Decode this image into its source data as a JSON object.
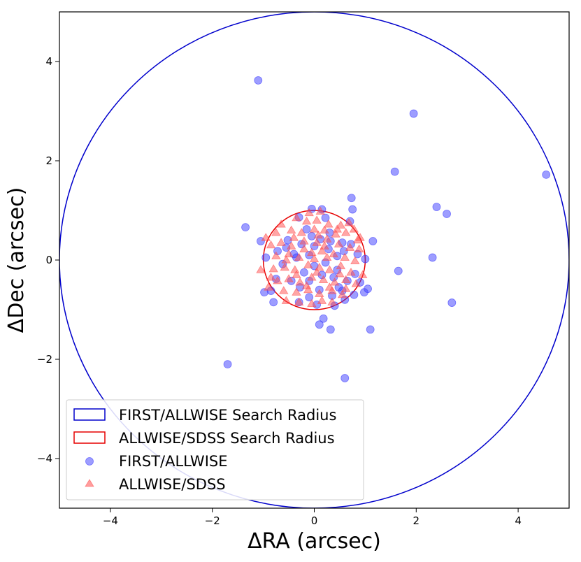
{
  "chart_data": {
    "type": "scatter",
    "xlabel": "ΔRA (arcsec)",
    "ylabel": "ΔDec (arcsec)",
    "xlim": [
      -5,
      5
    ],
    "ylim": [
      -5,
      5
    ],
    "xticks": [
      -4,
      -2,
      0,
      2,
      4
    ],
    "yticks": [
      -4,
      -2,
      0,
      2,
      4
    ],
    "xtick_labels": [
      "−4",
      "−2",
      "0",
      "2",
      "4"
    ],
    "ytick_labels": [
      "−4",
      "−2",
      "0",
      "2",
      "4"
    ],
    "grid": false,
    "legend_position": "lower-left",
    "circles": [
      {
        "name": "FIRST/ALLWISE Search Radius",
        "center": [
          0,
          0
        ],
        "radius": 5,
        "color": "#0000cc"
      },
      {
        "name": "ALLWISE/SDSS Search Radius",
        "center": [
          0,
          0
        ],
        "radius": 1,
        "color": "#e60000"
      }
    ],
    "series": [
      {
        "name": "FIRST/ALLWISE",
        "marker": "circle",
        "color": "#3b3bff",
        "points": [
          [
            -1.1,
            3.62
          ],
          [
            1.95,
            2.95
          ],
          [
            1.58,
            1.78
          ],
          [
            4.55,
            1.72
          ],
          [
            2.4,
            1.07
          ],
          [
            2.6,
            0.93
          ],
          [
            0.73,
            1.25
          ],
          [
            0.75,
            1.02
          ],
          [
            0.15,
            1.02
          ],
          [
            -0.05,
            1.03
          ],
          [
            -0.3,
            0.86
          ],
          [
            -1.35,
            0.66
          ],
          [
            -1.05,
            0.38
          ],
          [
            1.15,
            0.38
          ],
          [
            2.32,
            0.05
          ],
          [
            1.65,
            -0.22
          ],
          [
            2.7,
            -0.86
          ],
          [
            1.1,
            -1.4
          ],
          [
            0.6,
            -2.38
          ],
          [
            -1.7,
            -2.1
          ],
          [
            0.1,
            -1.3
          ],
          [
            0.32,
            -1.4
          ],
          [
            0.18,
            -1.18
          ],
          [
            -0.8,
            -0.85
          ],
          [
            -0.98,
            -0.65
          ],
          [
            -0.95,
            0.05
          ],
          [
            -0.72,
            0.18
          ],
          [
            -0.52,
            0.4
          ],
          [
            -0.62,
            -0.08
          ],
          [
            -0.35,
            0.05
          ],
          [
            -0.15,
            0.62
          ],
          [
            0.0,
            0.28
          ],
          [
            0.22,
            0.85
          ],
          [
            0.32,
            0.38
          ],
          [
            0.45,
            0.08
          ],
          [
            0.55,
            0.35
          ],
          [
            0.72,
            0.32
          ],
          [
            0.85,
            0.12
          ],
          [
            1.0,
            0.02
          ],
          [
            0.8,
            -0.28
          ],
          [
            0.65,
            -0.42
          ],
          [
            0.48,
            -0.55
          ],
          [
            0.35,
            -0.72
          ],
          [
            0.1,
            -0.6
          ],
          [
            -0.1,
            -0.75
          ],
          [
            -0.28,
            -0.55
          ],
          [
            -0.45,
            -0.42
          ],
          [
            -0.75,
            -0.38
          ],
          [
            -0.2,
            -0.25
          ],
          [
            0.0,
            -0.12
          ],
          [
            0.22,
            -0.05
          ],
          [
            -0.1,
            0.1
          ],
          [
            0.15,
            -0.3
          ],
          [
            0.38,
            -0.35
          ],
          [
            -0.3,
            -0.85
          ],
          [
            0.05,
            -0.9
          ],
          [
            0.4,
            -0.92
          ],
          [
            0.98,
            -0.65
          ],
          [
            1.05,
            -0.58
          ],
          [
            0.78,
            -0.7
          ],
          [
            0.6,
            -0.8
          ],
          [
            0.58,
            0.18
          ],
          [
            -0.05,
            0.48
          ],
          [
            0.3,
            0.55
          ],
          [
            -0.55,
            0.25
          ],
          [
            0.7,
            0.78
          ],
          [
            0.28,
            0.22
          ],
          [
            -0.1,
            -0.42
          ],
          [
            0.45,
            -0.2
          ],
          [
            -0.4,
            0.12
          ],
          [
            -0.85,
            -0.62
          ],
          [
            0.12,
            0.42
          ],
          [
            -0.25,
            0.32
          ],
          [
            0.9,
            -0.45
          ],
          [
            0.55,
            -0.62
          ]
        ]
      },
      {
        "name": "ALLWISE/SDSS",
        "marker": "triangle",
        "color": "#ff4d4d",
        "points": [
          [
            -0.35,
            0.85
          ],
          [
            -0.15,
            0.78
          ],
          [
            0.05,
            0.8
          ],
          [
            0.28,
            0.72
          ],
          [
            0.52,
            0.7
          ],
          [
            0.68,
            0.75
          ],
          [
            -0.45,
            0.6
          ],
          [
            -0.25,
            0.55
          ],
          [
            0.0,
            0.62
          ],
          [
            0.2,
            0.6
          ],
          [
            0.42,
            0.52
          ],
          [
            0.62,
            0.55
          ],
          [
            -0.85,
            0.3
          ],
          [
            -0.65,
            0.35
          ],
          [
            -0.45,
            0.28
          ],
          [
            -0.2,
            0.38
          ],
          [
            0.05,
            0.35
          ],
          [
            0.25,
            0.42
          ],
          [
            0.48,
            0.32
          ],
          [
            0.7,
            0.25
          ],
          [
            0.88,
            0.22
          ],
          [
            -0.75,
            0.08
          ],
          [
            -0.5,
            0.12
          ],
          [
            -0.3,
            0.05
          ],
          [
            -0.05,
            0.15
          ],
          [
            0.15,
            0.18
          ],
          [
            0.38,
            0.12
          ],
          [
            0.6,
            0.05
          ],
          [
            0.8,
            -0.02
          ],
          [
            -0.8,
            -0.18
          ],
          [
            -0.58,
            -0.15
          ],
          [
            -0.38,
            -0.2
          ],
          [
            -0.12,
            -0.1
          ],
          [
            0.1,
            -0.15
          ],
          [
            0.3,
            -0.2
          ],
          [
            0.52,
            -0.12
          ],
          [
            0.72,
            -0.25
          ],
          [
            -0.72,
            -0.42
          ],
          [
            -0.5,
            -0.38
          ],
          [
            -0.28,
            -0.45
          ],
          [
            -0.05,
            -0.35
          ],
          [
            0.18,
            -0.4
          ],
          [
            0.4,
            -0.45
          ],
          [
            0.62,
            -0.4
          ],
          [
            0.82,
            -0.48
          ],
          [
            -0.6,
            -0.62
          ],
          [
            -0.35,
            -0.65
          ],
          [
            -0.12,
            -0.6
          ],
          [
            0.1,
            -0.68
          ],
          [
            0.35,
            -0.62
          ],
          [
            0.55,
            -0.7
          ],
          [
            -0.3,
            -0.85
          ],
          [
            -0.05,
            -0.88
          ],
          [
            0.15,
            -0.82
          ],
          [
            0.35,
            -0.85
          ],
          [
            -0.9,
            -0.55
          ],
          [
            -0.95,
            0.45
          ],
          [
            -0.75,
            0.55
          ],
          [
            0.9,
            0.45
          ],
          [
            -0.1,
            0.95
          ],
          [
            0.12,
            0.98
          ],
          [
            -0.55,
            -0.82
          ],
          [
            0.95,
            -0.3
          ],
          [
            -1.05,
            -0.2
          ],
          [
            -0.2,
            0.22
          ],
          [
            0.05,
            -0.25
          ],
          [
            0.25,
            0.05
          ],
          [
            -0.15,
            -0.52
          ],
          [
            0.45,
            0.62
          ],
          [
            -0.4,
            0.45
          ],
          [
            0.62,
            -0.58
          ],
          [
            0.78,
            0.62
          ],
          [
            -0.65,
            0.72
          ],
          [
            0.0,
            0.02
          ],
          [
            0.2,
            0.28
          ],
          [
            -0.35,
            -0.3
          ],
          [
            0.5,
            -0.28
          ],
          [
            -0.55,
            0.0
          ],
          [
            0.85,
            0.4
          ],
          [
            0.3,
            -0.55
          ],
          [
            -0.85,
            -0.35
          ],
          [
            0.08,
            0.5
          ]
        ]
      }
    ]
  }
}
